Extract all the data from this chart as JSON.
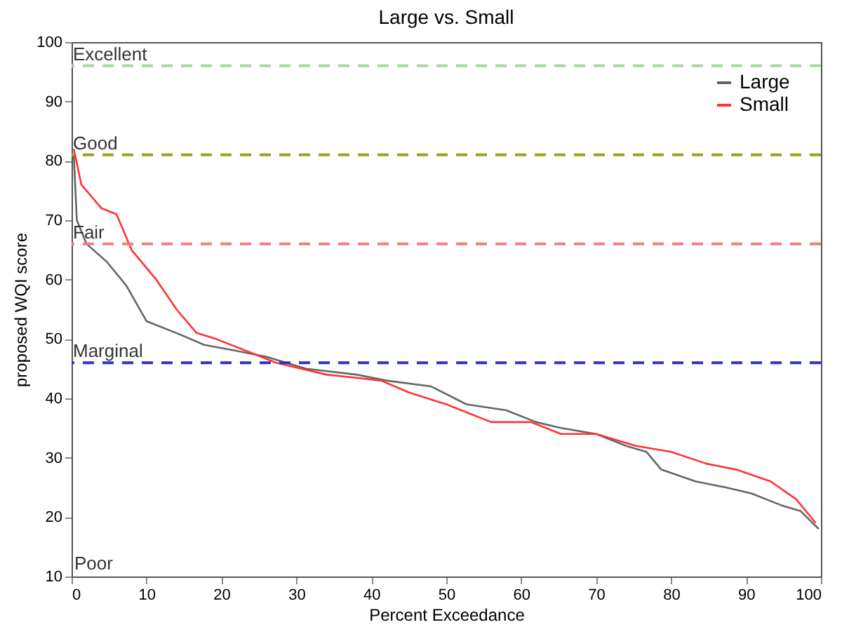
{
  "chart_data": {
    "type": "line",
    "title": "Large vs. Small",
    "xlabel": "Percent Exceedance",
    "ylabel": "proposed WQI score",
    "xlim": [
      0,
      100
    ],
    "xticks": [
      0,
      10,
      20,
      30,
      40,
      50,
      60,
      70,
      80,
      90,
      100
    ],
    "ylim": [
      10,
      100
    ],
    "yticks": [
      10,
      20,
      30,
      40,
      50,
      60,
      70,
      80,
      90,
      100
    ],
    "grid": false,
    "legend": "top right",
    "line_style": "solid",
    "marker": "none",
    "series": [
      {
        "name": "Large",
        "color": "#666666",
        "x": [
          0.3,
          0.7,
          2,
          4.7,
          7.3,
          10,
          14,
          17.7,
          22,
          26,
          31.3,
          38,
          42,
          48,
          52.7,
          58,
          62,
          65.3,
          70,
          74,
          76.7,
          78.7,
          83.3,
          87.3,
          90.7,
          94.7,
          97.3,
          99.7
        ],
        "values": [
          81,
          70,
          66,
          63,
          59,
          53,
          51,
          49,
          48,
          47,
          45,
          44,
          43,
          42,
          39,
          38,
          36,
          35,
          34,
          32,
          31,
          28,
          26,
          25,
          24,
          22,
          21,
          18
        ]
      },
      {
        "name": "Small",
        "color": "#ff3333",
        "x": [
          0.3,
          1.3,
          4,
          6,
          8,
          11.3,
          14,
          16.7,
          19.3,
          23.3,
          27.3,
          34,
          41.3,
          45,
          50,
          56,
          61.3,
          65.3,
          70,
          75.3,
          80,
          84.7,
          88.7,
          93.3,
          96.7,
          99.3
        ],
        "values": [
          82,
          76,
          72,
          71,
          65,
          60,
          55,
          51,
          50,
          48,
          46,
          44,
          43,
          41,
          39,
          36,
          36,
          34,
          34,
          32,
          31,
          29,
          28,
          26,
          23,
          19
        ]
      }
    ],
    "ref_lines": [
      {
        "axis": "y",
        "value": 96,
        "label": "Excellent",
        "color": "#a8d8a0",
        "line_style": "dashed"
      },
      {
        "axis": "y",
        "value": 81,
        "label": "Good",
        "color": "#a0a020",
        "line_style": "dashed"
      },
      {
        "axis": "y",
        "value": 66,
        "label": "Fair",
        "color": "#f08080",
        "line_style": "dashed"
      },
      {
        "axis": "y",
        "value": 46,
        "label": "Marginal",
        "color": "#3030d0",
        "line_style": "dashed"
      }
    ],
    "annotations": [
      "Poor"
    ]
  }
}
